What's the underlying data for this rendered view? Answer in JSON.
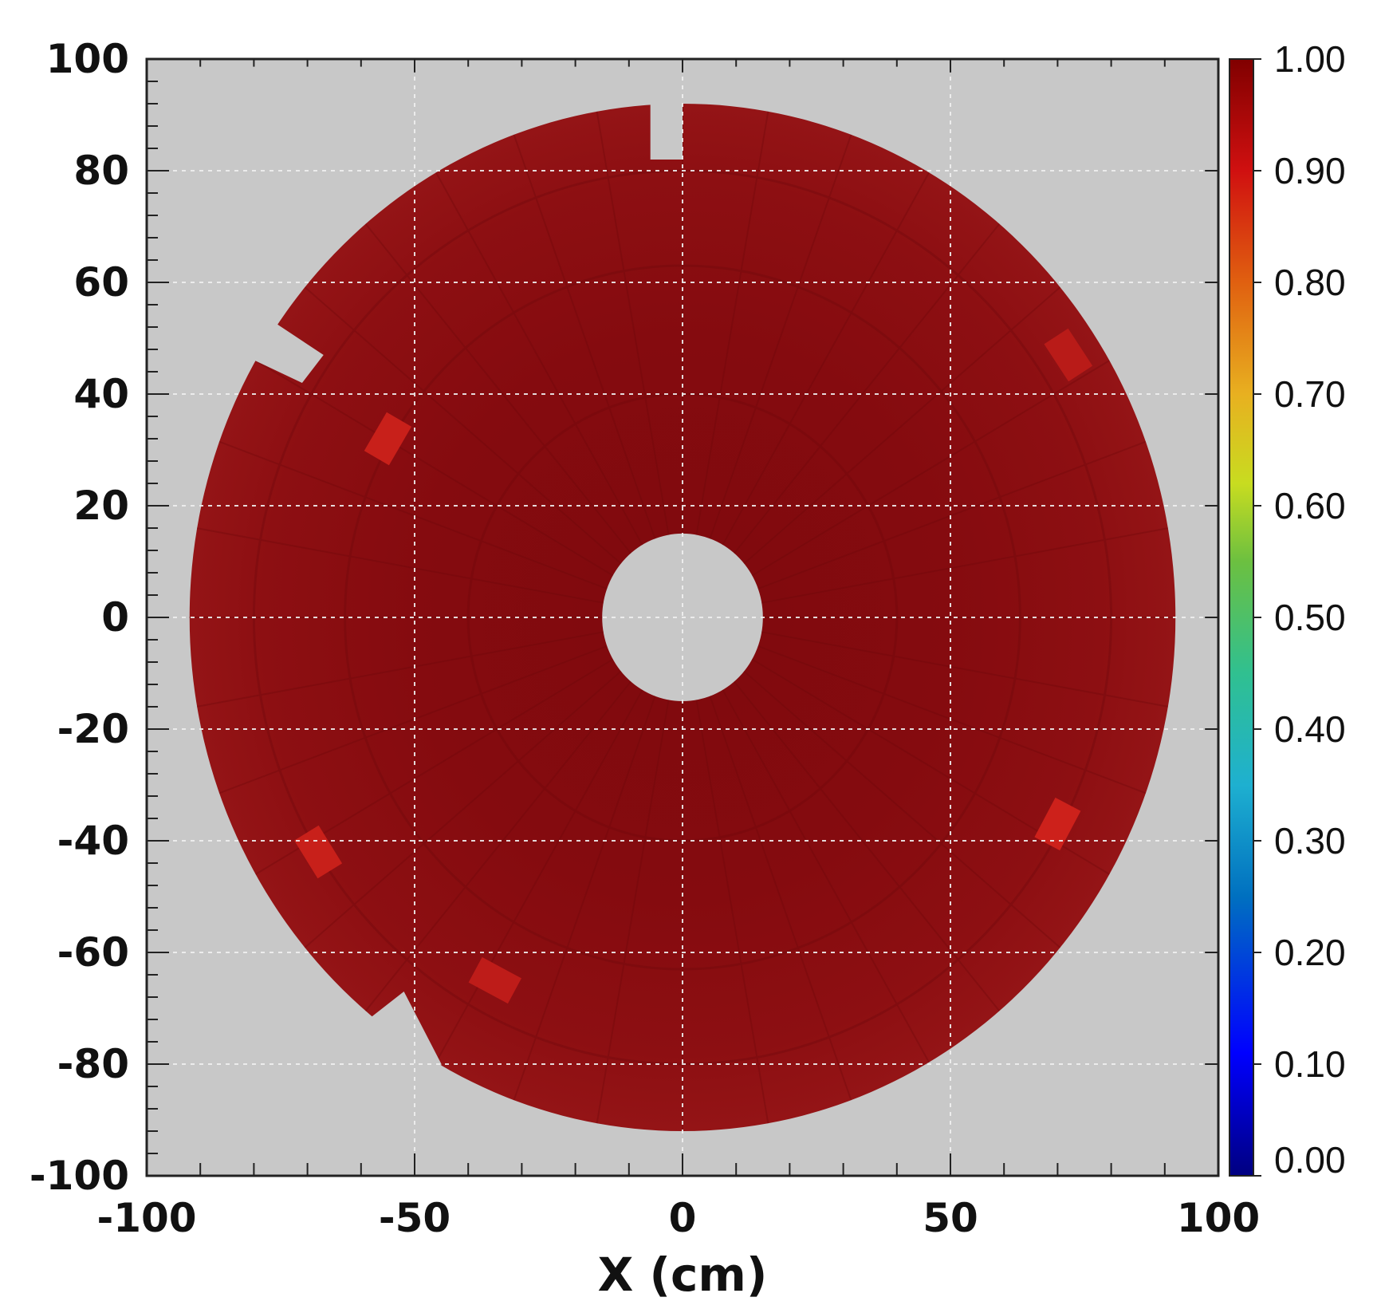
{
  "chart_data": {
    "type": "heatmap",
    "title": "",
    "xlabel": "X (cm)",
    "ylabel": "",
    "xlim": [
      -100,
      100
    ],
    "ylim": [
      -100,
      100
    ],
    "x_tick_labels": [
      "-100",
      "-50",
      "0",
      "50",
      "100"
    ],
    "y_tick_labels": [
      "100",
      "80",
      "60",
      "40",
      "20",
      "0",
      "-20",
      "-40",
      "-60",
      "-80",
      "-100"
    ],
    "grid": true,
    "colorbar": {
      "range": [
        0,
        1
      ],
      "tick_labels": [
        "1.00",
        "0.90",
        "0.80",
        "0.70",
        "0.60",
        "0.50",
        "0.40",
        "0.30",
        "0.20",
        "0.10",
        "0.00"
      ],
      "colormap": "jet"
    },
    "detector": {
      "inner_radius_cm": 15,
      "outer_radius_cm": 92,
      "typical_value": 0.95,
      "min_value_observed": 0.9,
      "hot_spots": [
        {
          "x": -55,
          "y": 32,
          "value": 0.9
        },
        {
          "x": -68,
          "y": -42,
          "value": 0.9
        },
        {
          "x": 70,
          "y": -37,
          "value": 0.89
        },
        {
          "x": -35,
          "y": -65,
          "value": 0.92
        },
        {
          "x": 72,
          "y": 47,
          "value": 0.93
        }
      ]
    },
    "background_color": "#c8c8c8",
    "fill_color": "#8b0d10"
  }
}
